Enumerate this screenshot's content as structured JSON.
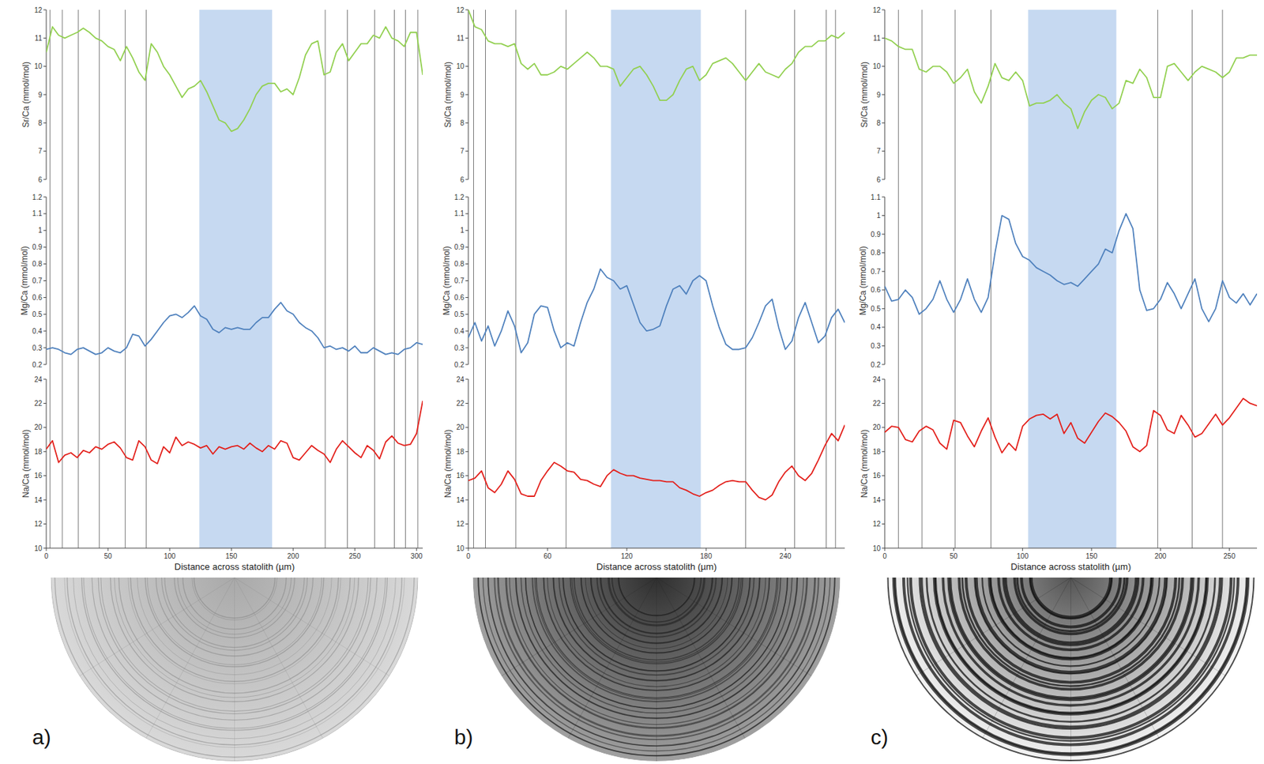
{
  "chart_data": [
    {
      "type": "line",
      "label": "a)",
      "x_label": "Distance across statolith (µm)",
      "xlim": [
        0,
        305
      ],
      "xticks": [
        0,
        50,
        100,
        150,
        200,
        250,
        300
      ],
      "shaded_range": [
        124,
        183
      ],
      "vertical_lines": [
        3,
        13,
        26,
        43,
        64,
        81,
        226,
        244,
        266,
        282,
        291,
        301
      ],
      "x": [
        0,
        5,
        10,
        15,
        20,
        25,
        30,
        35,
        40,
        45,
        50,
        55,
        60,
        65,
        70,
        75,
        80,
        85,
        90,
        95,
        100,
        105,
        110,
        115,
        120,
        125,
        130,
        135,
        140,
        145,
        150,
        155,
        160,
        165,
        170,
        175,
        180,
        185,
        190,
        195,
        200,
        205,
        210,
        215,
        220,
        225,
        230,
        235,
        240,
        245,
        250,
        255,
        260,
        265,
        270,
        275,
        280,
        285,
        290,
        295,
        300,
        305
      ],
      "series": [
        {
          "y_label": "Sr/Ca (mmol/mol)",
          "color": "#92d050",
          "ylim": [
            6,
            12
          ],
          "yticks": [
            6,
            7,
            8,
            9,
            10,
            11,
            12
          ],
          "values": [
            10.5,
            11.4,
            11.1,
            11.0,
            11.1,
            11.2,
            11.35,
            11.2,
            11.0,
            10.9,
            10.7,
            10.6,
            10.2,
            10.7,
            10.3,
            9.8,
            9.5,
            10.8,
            10.5,
            10.0,
            9.7,
            9.3,
            8.9,
            9.2,
            9.3,
            9.5,
            9.1,
            8.6,
            8.1,
            8.0,
            7.7,
            7.8,
            8.1,
            8.5,
            9.0,
            9.3,
            9.4,
            9.4,
            9.1,
            9.2,
            9.0,
            9.6,
            10.4,
            10.8,
            10.9,
            9.7,
            9.8,
            10.5,
            10.8,
            10.2,
            10.5,
            10.8,
            10.8,
            11.1,
            11.0,
            11.4,
            11.0,
            10.9,
            10.7,
            11.2,
            11.2,
            9.7
          ]
        },
        {
          "y_label": "Mg/Ca (mmol/mol)",
          "color": "#4f81bd",
          "ylim": [
            0.2,
            1.2
          ],
          "yticks": [
            0.2,
            0.3,
            0.4,
            0.5,
            0.6,
            0.7,
            0.8,
            0.9,
            1,
            1.1,
            1.2
          ],
          "values": [
            0.29,
            0.3,
            0.29,
            0.27,
            0.26,
            0.29,
            0.3,
            0.28,
            0.26,
            0.27,
            0.3,
            0.28,
            0.27,
            0.3,
            0.38,
            0.37,
            0.31,
            0.35,
            0.4,
            0.45,
            0.49,
            0.5,
            0.48,
            0.51,
            0.55,
            0.49,
            0.47,
            0.41,
            0.39,
            0.42,
            0.41,
            0.42,
            0.41,
            0.41,
            0.45,
            0.48,
            0.48,
            0.53,
            0.57,
            0.52,
            0.5,
            0.45,
            0.42,
            0.4,
            0.36,
            0.3,
            0.31,
            0.29,
            0.3,
            0.28,
            0.31,
            0.27,
            0.27,
            0.3,
            0.28,
            0.26,
            0.27,
            0.26,
            0.29,
            0.3,
            0.33,
            0.32
          ]
        },
        {
          "y_label": "Na/Ca (mmol/mol)",
          "color": "#e3201b",
          "ylim": [
            10,
            24
          ],
          "yticks": [
            10,
            12,
            14,
            16,
            18,
            20,
            22,
            24
          ],
          "values": [
            18.2,
            18.9,
            17.1,
            17.7,
            17.9,
            17.5,
            18.1,
            17.9,
            18.4,
            18.2,
            18.6,
            18.8,
            18.3,
            17.5,
            17.3,
            18.9,
            18.4,
            17.3,
            17.0,
            18.4,
            17.9,
            19.2,
            18.5,
            18.8,
            18.6,
            18.3,
            18.5,
            17.8,
            18.4,
            18.2,
            18.4,
            18.5,
            18.2,
            18.7,
            18.3,
            18.0,
            18.5,
            18.2,
            18.9,
            18.7,
            17.5,
            17.3,
            17.9,
            18.5,
            18.1,
            17.8,
            17.1,
            18.2,
            18.9,
            18.4,
            17.9,
            17.5,
            18.5,
            18.1,
            17.4,
            18.8,
            19.3,
            18.7,
            18.5,
            18.6,
            19.5,
            22.2
          ]
        }
      ]
    },
    {
      "type": "line",
      "label": "b)",
      "x_label": "Distance across statolith (µm)",
      "xlim": [
        0,
        285
      ],
      "xticks": [
        0,
        60,
        120,
        180,
        240
      ],
      "shaded_range": [
        108,
        176
      ],
      "vertical_lines": [
        4,
        13,
        36,
        74,
        210,
        247,
        271,
        278
      ],
      "x": [
        0,
        5,
        10,
        15,
        20,
        25,
        30,
        35,
        40,
        45,
        50,
        55,
        60,
        65,
        70,
        75,
        80,
        85,
        90,
        95,
        100,
        105,
        110,
        115,
        120,
        125,
        130,
        135,
        140,
        145,
        150,
        155,
        160,
        165,
        170,
        175,
        180,
        185,
        190,
        195,
        200,
        205,
        210,
        215,
        220,
        225,
        230,
        235,
        240,
        245,
        250,
        255,
        260,
        265,
        270,
        275,
        280,
        285
      ],
      "series": [
        {
          "y_label": "Sr/Ca (mmol/mol)",
          "color": "#92d050",
          "ylim": [
            6,
            12
          ],
          "yticks": [
            6,
            7,
            8,
            9,
            10,
            11,
            12
          ],
          "values": [
            12.0,
            11.4,
            11.3,
            10.9,
            10.8,
            10.8,
            10.7,
            10.8,
            10.1,
            9.9,
            10.1,
            9.7,
            9.7,
            9.8,
            10.0,
            9.9,
            10.1,
            10.3,
            10.5,
            10.3,
            10.0,
            10.0,
            9.9,
            9.3,
            9.6,
            9.9,
            10.0,
            9.7,
            9.3,
            8.8,
            8.8,
            9.0,
            9.5,
            9.9,
            10.0,
            9.5,
            9.7,
            10.1,
            10.2,
            10.3,
            10.1,
            9.8,
            9.5,
            9.8,
            10.1,
            9.8,
            9.7,
            9.6,
            9.9,
            10.1,
            10.5,
            10.7,
            10.7,
            10.9,
            10.9,
            11.1,
            11.0,
            11.2
          ]
        },
        {
          "y_label": "Mg/Ca (mmol/mol)",
          "color": "#4f81bd",
          "ylim": [
            0.2,
            1.2
          ],
          "yticks": [
            0.2,
            0.3,
            0.4,
            0.5,
            0.6,
            0.7,
            0.8,
            0.9,
            1,
            1.1,
            1.2
          ],
          "values": [
            0.36,
            0.45,
            0.34,
            0.43,
            0.31,
            0.4,
            0.52,
            0.43,
            0.27,
            0.33,
            0.5,
            0.55,
            0.54,
            0.4,
            0.3,
            0.33,
            0.31,
            0.45,
            0.57,
            0.65,
            0.77,
            0.72,
            0.7,
            0.65,
            0.67,
            0.56,
            0.45,
            0.4,
            0.41,
            0.43,
            0.55,
            0.65,
            0.67,
            0.62,
            0.7,
            0.73,
            0.7,
            0.55,
            0.42,
            0.32,
            0.29,
            0.29,
            0.3,
            0.36,
            0.45,
            0.55,
            0.59,
            0.42,
            0.29,
            0.34,
            0.48,
            0.57,
            0.45,
            0.33,
            0.37,
            0.48,
            0.53,
            0.45
          ]
        },
        {
          "y_label": "Na/Ca (mmol/mol)",
          "color": "#e3201b",
          "ylim": [
            10,
            24
          ],
          "yticks": [
            10,
            12,
            14,
            16,
            18,
            20,
            22,
            24
          ],
          "values": [
            15.6,
            15.8,
            16.4,
            15.0,
            14.6,
            15.3,
            16.4,
            15.7,
            14.5,
            14.3,
            14.3,
            15.6,
            16.4,
            17.1,
            16.8,
            16.4,
            16.3,
            15.7,
            15.6,
            15.3,
            15.1,
            16.0,
            16.5,
            16.2,
            16.0,
            16.0,
            15.8,
            15.7,
            15.6,
            15.6,
            15.5,
            15.5,
            15.0,
            14.8,
            14.5,
            14.3,
            14.6,
            14.8,
            15.2,
            15.5,
            15.6,
            15.5,
            15.5,
            14.8,
            14.2,
            14.0,
            14.4,
            15.5,
            16.3,
            16.8,
            16.0,
            15.6,
            16.2,
            17.3,
            18.5,
            19.5,
            18.9,
            20.2
          ]
        }
      ]
    },
    {
      "type": "line",
      "label": "c)",
      "x_label": "Distance across statolith (µm)",
      "xlim": [
        0,
        270
      ],
      "xticks": [
        0,
        50,
        100,
        150,
        200,
        250
      ],
      "shaded_range": [
        104,
        168
      ],
      "vertical_lines": [
        10,
        27,
        51,
        77,
        198,
        223,
        245
      ],
      "x": [
        0,
        5,
        10,
        15,
        20,
        25,
        30,
        35,
        40,
        45,
        50,
        55,
        60,
        65,
        70,
        75,
        80,
        85,
        90,
        95,
        100,
        105,
        110,
        115,
        120,
        125,
        130,
        135,
        140,
        145,
        150,
        155,
        160,
        165,
        170,
        175,
        180,
        185,
        190,
        195,
        200,
        205,
        210,
        215,
        220,
        225,
        230,
        235,
        240,
        245,
        250,
        255,
        260,
        265,
        270
      ],
      "series": [
        {
          "y_label": "Sr/Ca (mmol/mol)",
          "color": "#92d050",
          "ylim": [
            6,
            12
          ],
          "yticks": [
            6,
            7,
            8,
            9,
            10,
            11,
            12
          ],
          "values": [
            11.0,
            10.9,
            10.7,
            10.6,
            10.6,
            9.9,
            9.8,
            10.0,
            10.0,
            9.8,
            9.4,
            9.6,
            9.9,
            9.1,
            8.7,
            9.3,
            10.1,
            9.6,
            9.5,
            9.8,
            9.5,
            8.6,
            8.7,
            8.7,
            8.8,
            9.0,
            8.7,
            8.5,
            7.8,
            8.4,
            8.8,
            9.0,
            8.9,
            8.5,
            8.7,
            9.5,
            9.4,
            9.9,
            9.6,
            8.9,
            8.9,
            10.0,
            10.1,
            9.8,
            9.5,
            9.8,
            10.0,
            9.9,
            9.8,
            9.6,
            9.8,
            10.3,
            10.3,
            10.4,
            10.4
          ]
        },
        {
          "y_label": "Mg/Ca (mmol/mol)",
          "color": "#4f81bd",
          "ylim": [
            0.2,
            1.1
          ],
          "yticks": [
            0.2,
            0.3,
            0.4,
            0.5,
            0.6,
            0.7,
            0.8,
            0.9,
            1,
            1.1
          ],
          "values": [
            0.62,
            0.54,
            0.55,
            0.6,
            0.56,
            0.47,
            0.5,
            0.55,
            0.65,
            0.55,
            0.48,
            0.55,
            0.66,
            0.55,
            0.48,
            0.56,
            0.8,
            1.0,
            0.98,
            0.85,
            0.78,
            0.76,
            0.72,
            0.7,
            0.68,
            0.65,
            0.63,
            0.64,
            0.62,
            0.66,
            0.7,
            0.74,
            0.82,
            0.8,
            0.92,
            1.01,
            0.93,
            0.6,
            0.49,
            0.5,
            0.55,
            0.64,
            0.58,
            0.5,
            0.58,
            0.66,
            0.5,
            0.43,
            0.5,
            0.65,
            0.56,
            0.53,
            0.58,
            0.52,
            0.58
          ]
        },
        {
          "y_label": "Na/Ca (mmol/mol)",
          "color": "#e3201b",
          "ylim": [
            10,
            24
          ],
          "yticks": [
            10,
            12,
            14,
            16,
            18,
            20,
            22,
            24
          ],
          "values": [
            19.6,
            20.1,
            20.0,
            19.0,
            18.8,
            19.7,
            20.1,
            19.8,
            18.7,
            18.2,
            20.6,
            20.4,
            19.3,
            18.4,
            19.7,
            20.8,
            19.2,
            17.9,
            18.7,
            18.1,
            20.1,
            20.7,
            21.0,
            21.1,
            20.7,
            21.1,
            19.5,
            20.4,
            19.1,
            18.7,
            19.6,
            20.5,
            21.2,
            20.9,
            20.4,
            19.7,
            18.4,
            18.0,
            18.5,
            21.4,
            21.0,
            19.8,
            19.5,
            21.0,
            20.2,
            19.2,
            19.5,
            20.3,
            21.1,
            20.2,
            20.8,
            21.6,
            22.4,
            22.0,
            21.8
          ]
        }
      ]
    }
  ]
}
